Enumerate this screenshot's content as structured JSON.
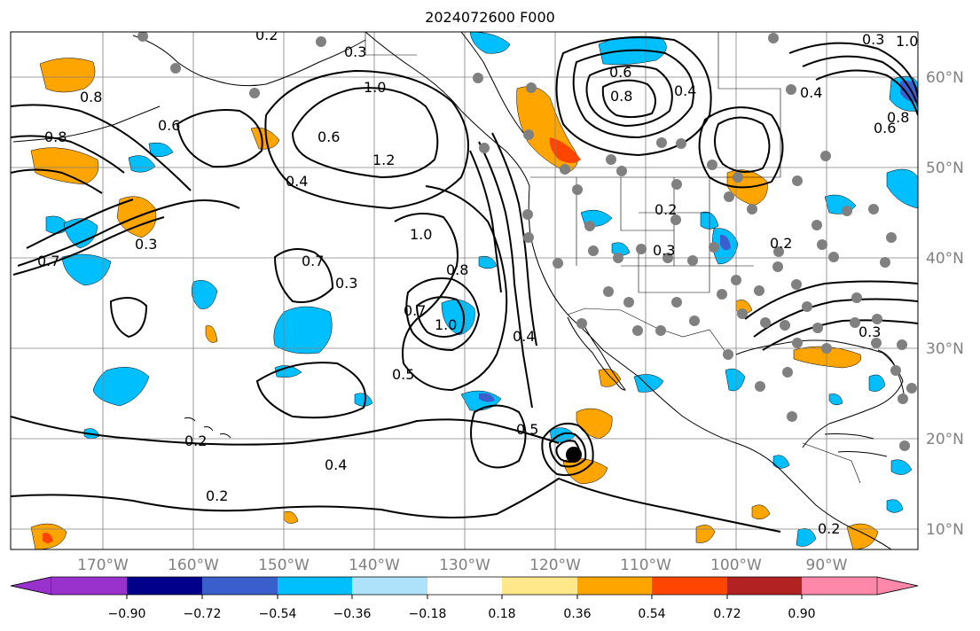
{
  "title": "2024072600 F000",
  "lon_labels": [
    "170°W",
    "160°W",
    "150°W",
    "140°W",
    "130°W",
    "120°W",
    "110°W",
    "100°W",
    "90°W"
  ],
  "lat_labels": [
    "60°N",
    "50°N",
    "40°N",
    "30°N",
    "20°N",
    "10°N"
  ],
  "colorbar": {
    "tick_labels": [
      "−0.90",
      "−0.72",
      "−0.54",
      "−0.36",
      "−0.18",
      "0.18",
      "0.36",
      "0.54",
      "0.72",
      "0.90"
    ],
    "colors": [
      "#9932cc",
      "#00008b",
      "#3a5fcd",
      "#00bfff",
      "#aee1fa",
      "#ffffff",
      "#ffe88a",
      "#ffa500",
      "#ff4500",
      "#b22222",
      "#ff88aa"
    ]
  },
  "contour_labels": [
    "0.2",
    "0.3",
    "1.0",
    "0.8",
    "0.6",
    "0.4",
    "1.2",
    "0.7",
    "0.5",
    "0.3",
    "0.2",
    "0.2",
    "0.4",
    "0.8",
    "1.0",
    "0.7",
    "0.4",
    "0.5",
    "0.6",
    "0.8",
    "0.4",
    "0.2",
    "0.3",
    "0.2",
    "0.3",
    "0.8",
    "0.6",
    "0.3",
    "0.4",
    "1.0",
    "0.8",
    "0.6",
    "0.2",
    "0.7",
    "0.3",
    "1.0"
  ],
  "colors": {
    "contour": "#000000",
    "grid": "#808080",
    "station_dot": "#808080",
    "storm_center": "#000000"
  }
}
